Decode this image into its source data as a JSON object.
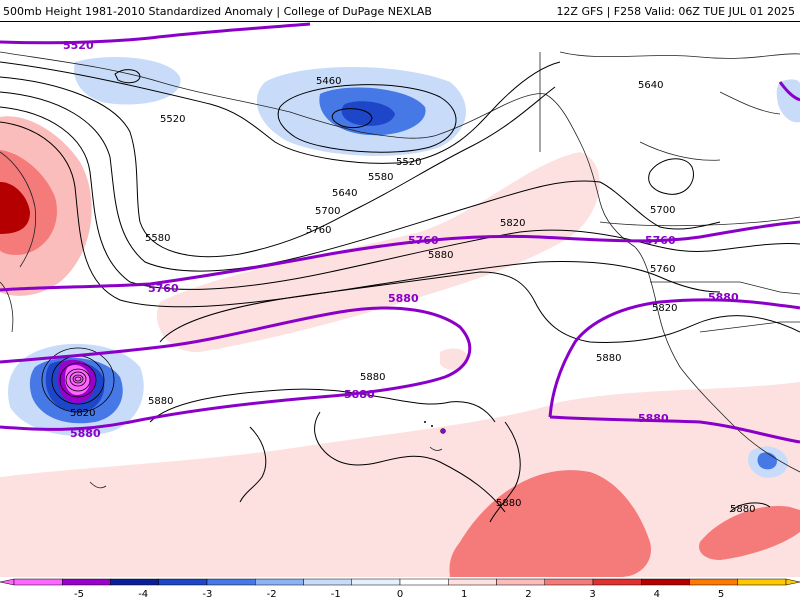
{
  "header": {
    "title": "500mb Height 1981-2010 Standardized Anomaly | College of DuPage NEXLAB",
    "valid": "12Z GFS | F258 Valid: 06Z TUE JUL 01 2025"
  },
  "contour_labels": {
    "c5460": "5460",
    "c5520a": "5520",
    "c5520b": "5520",
    "c5580a": "5580",
    "c5580b": "5580",
    "c5640a": "5640",
    "c5640b": "5640",
    "c5700a": "5700",
    "c5700b": "5700",
    "c5760a": "5760",
    "c5760b": "5760",
    "c5820a": "5820",
    "c5820b": "5820",
    "c5820c": "5820",
    "c5880a": "5880",
    "c5880b": "5880",
    "c5880c": "5880",
    "c5880d": "5880",
    "c5880e": "5880",
    "c5880f": "5880"
  },
  "climo_labels": {
    "p5520": "5520",
    "p5760a": "5760",
    "p5760b": "5760",
    "p5760c": "5760",
    "p5880a": "5880",
    "p5880b": "5880",
    "p5880c": "5880",
    "p5880d": "5880",
    "p5880e": "5880"
  },
  "colorbar": {
    "ticks": [
      "-5",
      "-4",
      "-3",
      "-2",
      "-1",
      "0",
      "1",
      "2",
      "3",
      "4",
      "5"
    ],
    "colors": {
      "m5": "#ff66ff",
      "m45": "#9900cc",
      "m4": "#0a1e9a",
      "m35": "#1e46c8",
      "m3": "#4678e6",
      "m25": "#8cb4f5",
      "m2": "#c8dcfa",
      "m15": "#e6f0fc",
      "z": "#ffffff",
      "p15": "#fde0e0",
      "p2": "#fbbcbc",
      "p25": "#f57a7a",
      "p3": "#e03030",
      "p35": "#b40000",
      "p4": "#ff7800",
      "p5": "#ffc800"
    }
  }
}
